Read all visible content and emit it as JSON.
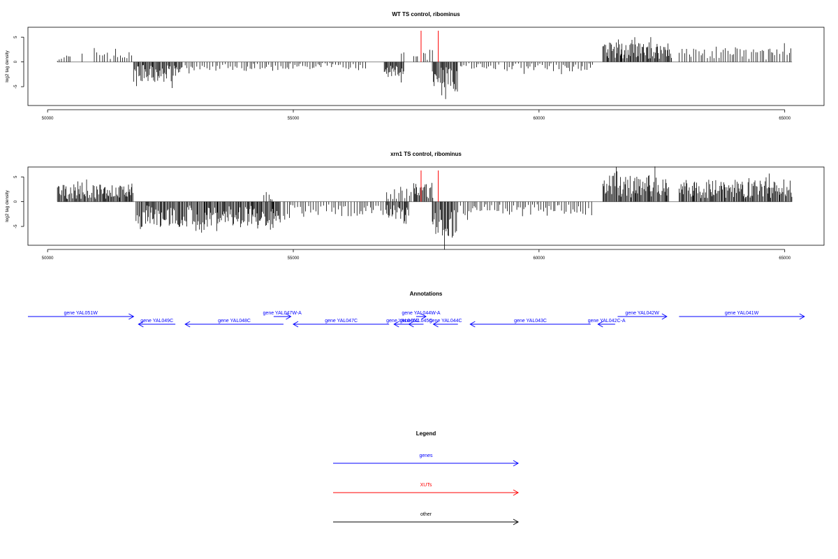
{
  "chart_data": [
    {
      "type": "bar",
      "title": "WT TS control, ribominus",
      "xlabel": "",
      "ylabel": "log2 tag density",
      "xlim": [
        49600,
        65800
      ],
      "ylim": [
        -8.8,
        7.0
      ],
      "xticks": [
        50000,
        55000,
        60000,
        65000
      ],
      "yticks": [
        -5,
        0,
        5
      ],
      "baseline_range": [
        50200,
        65150
      ],
      "segments": [
        {
          "start": 50200,
          "end": 50500,
          "h": 1.5,
          "sign": 1
        },
        {
          "start": 50700,
          "end": 50720,
          "h": 2.0,
          "sign": 1
        },
        {
          "start": 50950,
          "end": 51300,
          "h": 3.0,
          "sign": 1
        },
        {
          "start": 51350,
          "end": 51720,
          "h": 2.2,
          "sign": 1
        },
        {
          "start": 51750,
          "end": 52750,
          "h": -4.2,
          "sign": -1
        },
        {
          "start": 52800,
          "end": 53900,
          "h": -1.8,
          "sign": -1
        },
        {
          "start": 53950,
          "end": 56500,
          "h": -1.5,
          "sign": -1
        },
        {
          "start": 56850,
          "end": 57250,
          "h": -3.2,
          "sign": -1
        },
        {
          "start": 57200,
          "end": 57250,
          "h": 2.0,
          "sign": 1
        },
        {
          "start": 57450,
          "end": 57550,
          "h": 1.5,
          "sign": 1
        },
        {
          "start": 57650,
          "end": 57850,
          "h": 2.5,
          "sign": 1
        },
        {
          "start": 57830,
          "end": 58350,
          "h": -6.0,
          "sign": -1
        },
        {
          "start": 58400,
          "end": 59200,
          "h": -1.5,
          "sign": -1
        },
        {
          "start": 59300,
          "end": 61100,
          "h": -2.0,
          "sign": -1
        },
        {
          "start": 61300,
          "end": 62700,
          "h": 4.0,
          "sign": 1
        },
        {
          "start": 62850,
          "end": 65150,
          "h": 3.0,
          "sign": 1
        }
      ],
      "xut_lines": [
        {
          "x": 57600,
          "h": 6.3
        },
        {
          "x": 57950,
          "h": 6.3
        }
      ]
    },
    {
      "type": "bar",
      "title": "xrn1 TS control, ribominus",
      "xlabel": "",
      "ylabel": "log2 tag density",
      "xlim": [
        49600,
        65800
      ],
      "ylim": [
        -8.8,
        7.0
      ],
      "xticks": [
        50000,
        55000,
        60000,
        65000
      ],
      "yticks": [
        -5,
        0,
        5
      ],
      "baseline_range": [
        50200,
        65150
      ],
      "segments": [
        {
          "start": 50200,
          "end": 51750,
          "h": 3.5,
          "sign": 1
        },
        {
          "start": 51800,
          "end": 54750,
          "h": -5.2,
          "sign": -1
        },
        {
          "start": 54400,
          "end": 54600,
          "h": 2.0,
          "sign": 1
        },
        {
          "start": 54800,
          "end": 56900,
          "h": -3.0,
          "sign": -1
        },
        {
          "start": 56900,
          "end": 57350,
          "h": -4.5,
          "sign": -1
        },
        {
          "start": 56900,
          "end": 57450,
          "h": 3.0,
          "sign": 1
        },
        {
          "start": 57450,
          "end": 57850,
          "h": 4.0,
          "sign": 1
        },
        {
          "start": 57830,
          "end": 58350,
          "h": -7.5,
          "sign": -1
        },
        {
          "start": 58400,
          "end": 61100,
          "h": -3.0,
          "sign": -1
        },
        {
          "start": 61300,
          "end": 62650,
          "h": 5.5,
          "sign": 1
        },
        {
          "start": 62850,
          "end": 65150,
          "h": 4.5,
          "sign": 1
        }
      ],
      "xut_lines": [
        {
          "x": 57600,
          "h": 6.3
        },
        {
          "x": 57950,
          "h": 6.3
        }
      ]
    }
  ],
  "annotations": {
    "title": "Annotations",
    "color": "#0000ff",
    "genes": [
      {
        "label": "gene YAL051W",
        "start": 49600,
        "end": 51750,
        "dir": "+",
        "row": 0
      },
      {
        "label": "gene YAL049C",
        "start": 51850,
        "end": 52600,
        "dir": "-",
        "row": 1
      },
      {
        "label": "gene YAL048C",
        "start": 52800,
        "end": 54800,
        "dir": "-",
        "row": 1
      },
      {
        "label": "gene YAL047W-A",
        "start": 54600,
        "end": 54950,
        "dir": "+",
        "row": 0
      },
      {
        "label": "gene YAL047C",
        "start": 55000,
        "end": 56950,
        "dir": "-",
        "row": 1
      },
      {
        "label": "gene YAL046C",
        "start": 57050,
        "end": 57400,
        "dir": "-",
        "row": 1
      },
      {
        "label": "gene YAL044W-A",
        "start": 57500,
        "end": 57700,
        "dir": "+",
        "row": 0
      },
      {
        "label": "gene YAL045C",
        "start": 57350,
        "end": 57650,
        "dir": "-",
        "row": 1
      },
      {
        "label": "gene YAL044C",
        "start": 57850,
        "end": 58350,
        "dir": "-",
        "row": 1
      },
      {
        "label": "gene YAL043C",
        "start": 58600,
        "end": 61050,
        "dir": "-",
        "row": 1
      },
      {
        "label": "gene YAL042C-A",
        "start": 61200,
        "end": 61550,
        "dir": "-",
        "row": 1
      },
      {
        "label": "gene YAL042W",
        "start": 61600,
        "end": 62600,
        "dir": "+",
        "row": 0
      },
      {
        "label": "gene YAL041W",
        "start": 62850,
        "end": 65400,
        "dir": "+",
        "row": 0
      }
    ]
  },
  "legend": {
    "title": "Legend",
    "items": [
      {
        "label": "genes",
        "color": "#0000ff"
      },
      {
        "label": "XUTs",
        "color": "#ff0000"
      },
      {
        "label": "other",
        "color": "#000000"
      }
    ]
  }
}
